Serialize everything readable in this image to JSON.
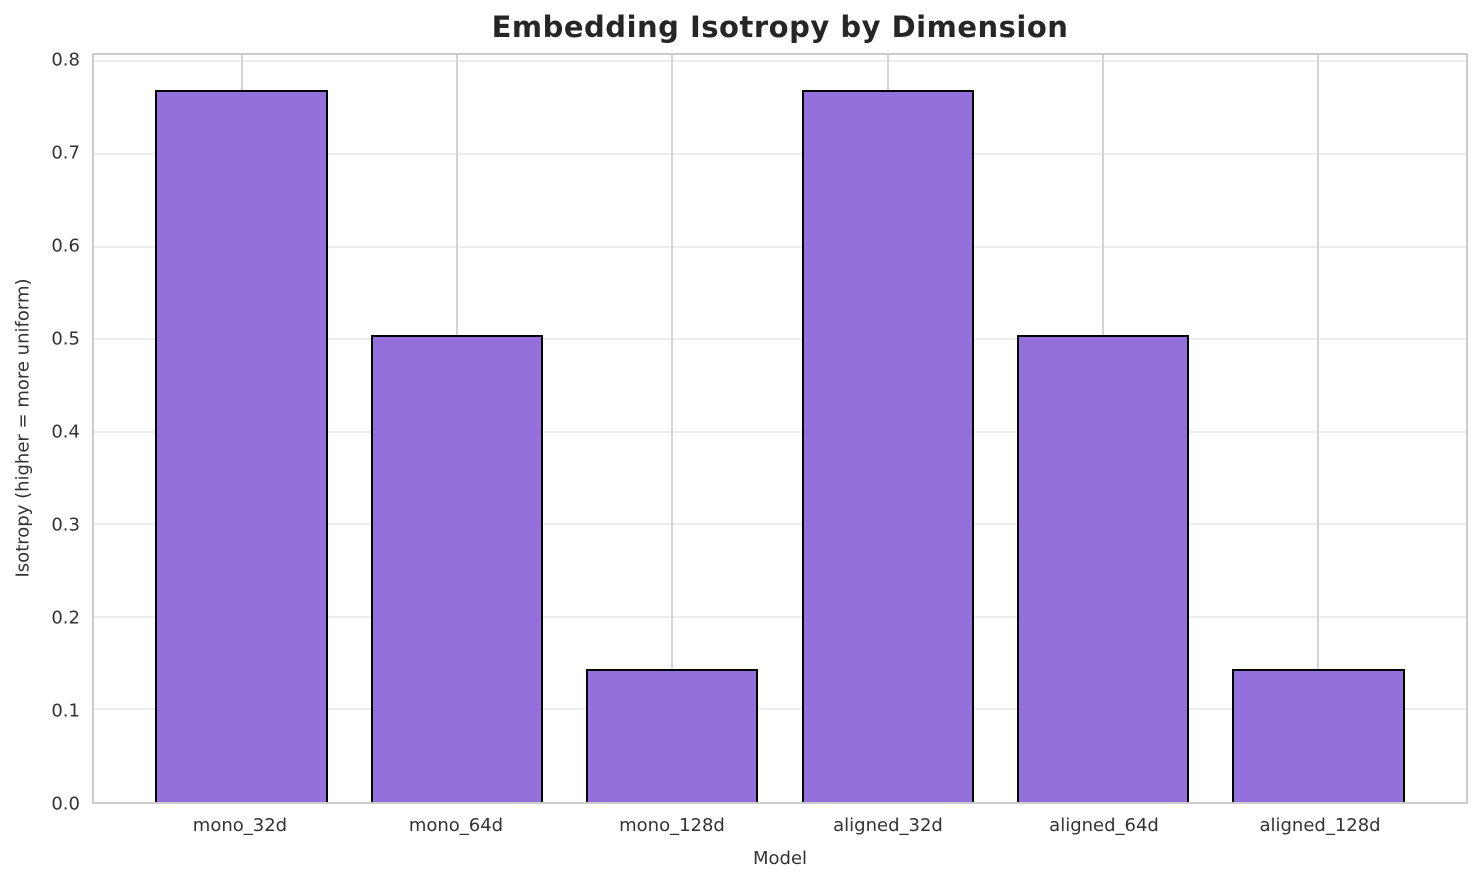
{
  "chart_data": {
    "type": "bar",
    "title": "Embedding Isotropy by Dimension",
    "xlabel": "Model",
    "ylabel": "Isotropy (higher = more uniform)",
    "categories": [
      "mono_32d",
      "mono_64d",
      "mono_128d",
      "aligned_32d",
      "aligned_64d",
      "aligned_128d"
    ],
    "values": [
      0.769,
      0.505,
      0.144,
      0.769,
      0.505,
      0.144
    ],
    "ylim": [
      0,
      0.807
    ],
    "yticks": [
      0.0,
      0.1,
      0.2,
      0.3,
      0.4,
      0.5,
      0.6,
      0.7,
      0.8
    ],
    "ytick_labels": [
      "0.0",
      "0.1",
      "0.2",
      "0.3",
      "0.4",
      "0.5",
      "0.6",
      "0.7",
      "0.8"
    ],
    "xlim": [
      -0.685,
      5.685
    ],
    "bar_width_units": 0.8,
    "grid": true,
    "legend_position": "none",
    "colors": {
      "bar_fill": "#9370DB",
      "bar_edge": "#000000",
      "grid_horizontal": "#ececec",
      "grid_vertical": "#d4d4d4",
      "spine": "#cccccc",
      "title_text": "#262626",
      "tick_text": "#333333",
      "background": "#ffffff"
    }
  }
}
